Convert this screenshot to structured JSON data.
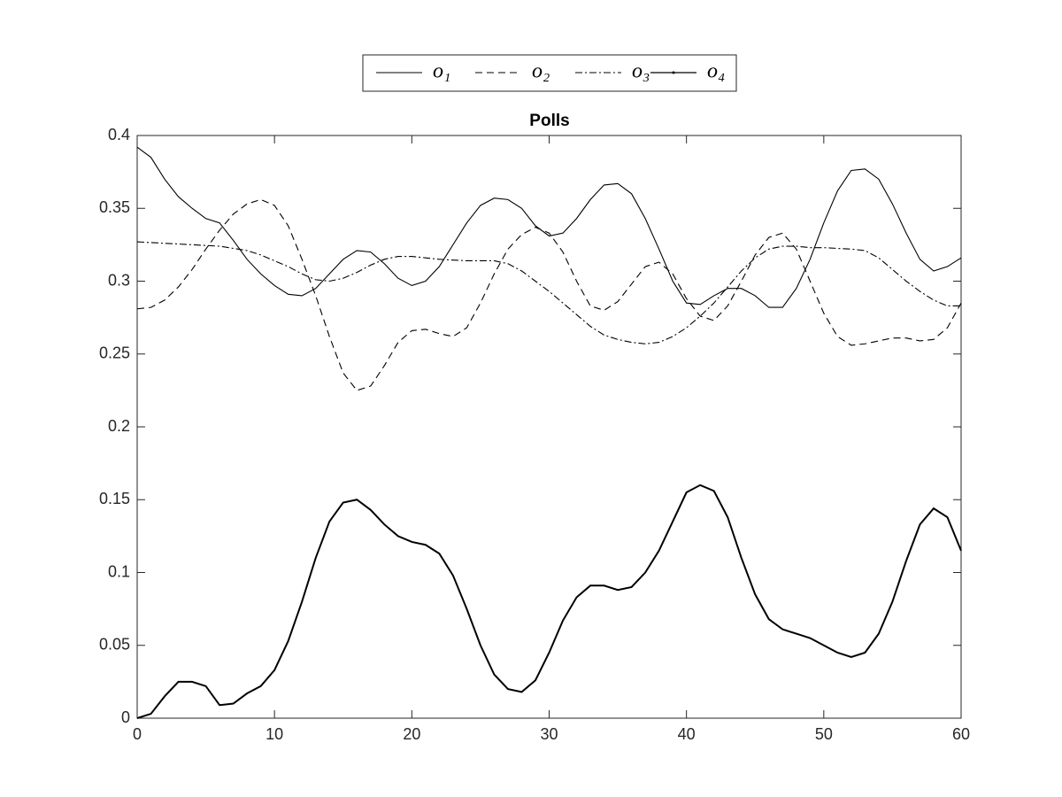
{
  "chart_data": {
    "type": "line",
    "title": "Polls",
    "x": [
      0,
      1,
      2,
      3,
      4,
      5,
      6,
      7,
      8,
      9,
      10,
      11,
      12,
      13,
      14,
      15,
      16,
      17,
      18,
      19,
      20,
      21,
      22,
      23,
      24,
      25,
      26,
      27,
      28,
      29,
      30,
      31,
      32,
      33,
      34,
      35,
      36,
      37,
      38,
      39,
      40,
      41,
      42,
      43,
      44,
      45,
      46,
      47,
      48,
      49,
      50,
      51,
      52,
      53,
      54,
      55,
      56,
      57,
      58,
      59,
      60
    ],
    "series": [
      {
        "name": "o₁",
        "color": "#000000",
        "linestyle": "solid",
        "values": [
          0.392,
          0.385,
          0.37,
          0.358,
          0.35,
          0.343,
          0.34,
          0.328,
          0.315,
          0.305,
          0.297,
          0.291,
          0.29,
          0.295,
          0.305,
          0.315,
          0.321,
          0.32,
          0.312,
          0.302,
          0.297,
          0.3,
          0.31,
          0.325,
          0.34,
          0.352,
          0.357,
          0.356,
          0.35,
          0.338,
          0.331,
          0.333,
          0.343,
          0.356,
          0.366,
          0.367,
          0.36,
          0.343,
          0.322,
          0.3,
          0.285,
          0.284,
          0.29,
          0.295,
          0.295,
          0.29,
          0.282,
          0.282,
          0.295,
          0.315,
          0.34,
          0.362,
          0.376,
          0.377,
          0.37,
          0.353,
          0.333,
          0.315,
          0.307,
          0.31,
          0.316
        ]
      },
      {
        "name": "o₂",
        "color": "#000000",
        "linestyle": "dashed",
        "values": [
          0.281,
          0.282,
          0.287,
          0.296,
          0.308,
          0.322,
          0.335,
          0.346,
          0.353,
          0.356,
          0.352,
          0.338,
          0.315,
          0.29,
          0.262,
          0.237,
          0.225,
          0.228,
          0.242,
          0.258,
          0.266,
          0.267,
          0.264,
          0.262,
          0.268,
          0.285,
          0.305,
          0.322,
          0.332,
          0.337,
          0.333,
          0.32,
          0.3,
          0.283,
          0.28,
          0.286,
          0.298,
          0.31,
          0.313,
          0.305,
          0.288,
          0.276,
          0.273,
          0.283,
          0.3,
          0.318,
          0.33,
          0.333,
          0.322,
          0.3,
          0.278,
          0.262,
          0.256,
          0.257,
          0.259,
          0.261,
          0.261,
          0.259,
          0.26,
          0.268,
          0.285
        ]
      },
      {
        "name": "o₃",
        "color": "#000000",
        "linestyle": "dashdot",
        "values": [
          0.327,
          0.3265,
          0.326,
          0.3255,
          0.325,
          0.3245,
          0.324,
          0.3225,
          0.321,
          0.318,
          0.314,
          0.31,
          0.305,
          0.301,
          0.3,
          0.302,
          0.306,
          0.311,
          0.315,
          0.317,
          0.317,
          0.316,
          0.315,
          0.3145,
          0.314,
          0.314,
          0.314,
          0.312,
          0.307,
          0.3,
          0.293,
          0.285,
          0.277,
          0.269,
          0.263,
          0.26,
          0.258,
          0.257,
          0.258,
          0.262,
          0.268,
          0.276,
          0.285,
          0.296,
          0.307,
          0.316,
          0.322,
          0.324,
          0.324,
          0.323,
          0.323,
          0.3225,
          0.322,
          0.321,
          0.316,
          0.308,
          0.3,
          0.293,
          0.287,
          0.283,
          0.283
        ]
      },
      {
        "name": "o₄",
        "color": "#000000",
        "linestyle": "marker",
        "values": [
          0,
          0.003,
          0.015,
          0.025,
          0.025,
          0.022,
          0.009,
          0.01,
          0.017,
          0.022,
          0.033,
          0.053,
          0.08,
          0.11,
          0.135,
          0.148,
          0.15,
          0.143,
          0.133,
          0.125,
          0.121,
          0.119,
          0.113,
          0.098,
          0.075,
          0.05,
          0.03,
          0.02,
          0.018,
          0.026,
          0.045,
          0.067,
          0.083,
          0.091,
          0.091,
          0.088,
          0.09,
          0.1,
          0.115,
          0.135,
          0.155,
          0.16,
          0.156,
          0.138,
          0.11,
          0.085,
          0.068,
          0.061,
          0.058,
          0.055,
          0.05,
          0.045,
          0.042,
          0.045,
          0.058,
          0.08,
          0.108,
          0.133,
          0.144,
          0.138,
          0.115
        ]
      }
    ],
    "xlim": [
      0,
      60
    ],
    "xticks": [
      0,
      10,
      20,
      30,
      40,
      50,
      60
    ],
    "ylim": [
      0,
      0.4
    ],
    "yticks": [
      0,
      0.05,
      0.1,
      0.15,
      0.2,
      0.25,
      0.3,
      0.35,
      0.4
    ],
    "grid": false,
    "legend": "top-outside"
  }
}
